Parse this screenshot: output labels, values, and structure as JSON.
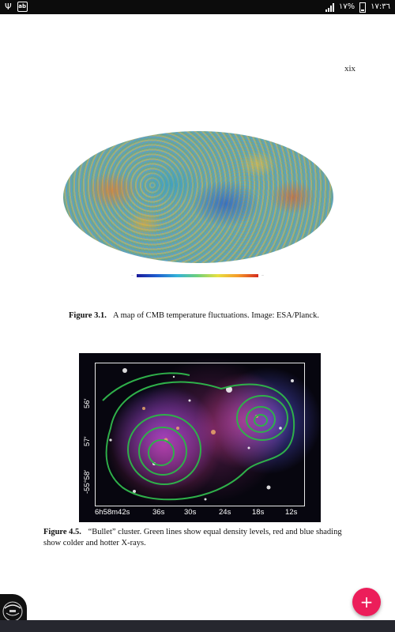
{
  "status_bar": {
    "clock": "١٧:٣٦",
    "battery": "١٧%",
    "icons": [
      "usb-icon",
      "notification-icon",
      "signal-icon",
      "battery-icon"
    ]
  },
  "page": {
    "number": "xix",
    "figure_1": {
      "label": "Figure 3.1.",
      "text": "A map of CMB temperature fluctuations. Image: ESA/Planck."
    },
    "figure_2": {
      "label": "Figure 4.5.",
      "text": "“Bullet” cluster. Green lines show equal density levels, red and blue shading show colder and hotter X-rays.",
      "ra_ticks": [
        "6h58m42s",
        "36s",
        "30s",
        "24s",
        "18s",
        "12s"
      ],
      "dec_ticks": [
        "56′",
        "57′",
        "-55°58′"
      ]
    }
  },
  "fab": {
    "label": "+",
    "color": "#ec1e5a"
  },
  "colors": {
    "status_bar": "#0c0c0c",
    "bottom_bar": "#26272f",
    "page": "#ffffff"
  }
}
